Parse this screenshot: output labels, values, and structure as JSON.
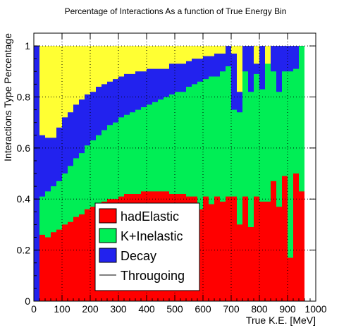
{
  "chart_data": {
    "type": "area",
    "stacked": true,
    "title": "Percentage of Interactions As a function of  True Energy Bin",
    "xlabel": "True K.E. [MeV]",
    "ylabel": "Interactions Type Percentage",
    "xlim": [
      0,
      1000
    ],
    "ylim": [
      0,
      1.05
    ],
    "xticks": [
      0,
      100,
      200,
      300,
      400,
      500,
      600,
      700,
      800,
      900,
      1000
    ],
    "yticks": [
      0,
      0.2,
      0.4,
      0.6,
      0.8,
      1
    ],
    "ytick_labels": [
      "0",
      "0.2",
      "0.4",
      "0.6",
      "0.8",
      "1"
    ],
    "grid": true,
    "legend_position": "bottom-center",
    "bin_width": 20,
    "bin_centers": [
      10,
      30,
      50,
      70,
      90,
      110,
      130,
      150,
      170,
      190,
      210,
      230,
      250,
      270,
      290,
      310,
      330,
      350,
      370,
      390,
      410,
      430,
      450,
      470,
      490,
      510,
      530,
      550,
      570,
      590,
      610,
      630,
      650,
      670,
      690,
      710,
      730,
      750,
      770,
      790,
      810,
      830,
      850,
      870,
      890,
      910,
      930,
      950,
      970,
      990
    ],
    "series": [
      {
        "name": "hadElastic",
        "color": "#ff0000",
        "cumulative": [
          0,
          0.26,
          0.25,
          0.27,
          0.28,
          0.3,
          0.31,
          0.33,
          0.34,
          0.36,
          0.37,
          0.38,
          0.39,
          0.4,
          0.4,
          0.41,
          0.42,
          0.42,
          0.42,
          0.43,
          0.43,
          0.43,
          0.43,
          0.43,
          0.42,
          0.42,
          0.42,
          0.41,
          0.41,
          0.36,
          0.41,
          0.38,
          0.41,
          0.39,
          0.41,
          0.41,
          0.3,
          0.41,
          0.29,
          0.41,
          0.39,
          0.39,
          0.47,
          0.37,
          0.49,
          0.17,
          0.5,
          0.43,
          0.0,
          0.0
        ]
      },
      {
        "name": "K+Inelastic",
        "color": "#00ee55",
        "cumulative": [
          0,
          0.41,
          0.43,
          0.45,
          0.47,
          0.5,
          0.53,
          0.56,
          0.58,
          0.61,
          0.63,
          0.65,
          0.67,
          0.69,
          0.7,
          0.72,
          0.73,
          0.74,
          0.75,
          0.76,
          0.77,
          0.78,
          0.79,
          0.8,
          0.81,
          0.82,
          0.82,
          0.84,
          0.85,
          0.86,
          0.87,
          0.88,
          0.88,
          0.9,
          0.92,
          0.75,
          0.74,
          0.9,
          0.82,
          0.89,
          0.83,
          0.93,
          0.9,
          0.82,
          0.9,
          0.9,
          0.91,
          1.0,
          0.0,
          0.0
        ]
      },
      {
        "name": "Decay",
        "color": "#2222ee",
        "cumulative": [
          1,
          0.65,
          0.64,
          0.64,
          0.68,
          0.72,
          0.74,
          0.77,
          0.79,
          0.81,
          0.82,
          0.84,
          0.85,
          0.86,
          0.87,
          0.88,
          0.89,
          0.89,
          0.9,
          0.9,
          0.91,
          0.91,
          0.91,
          0.91,
          0.93,
          0.93,
          0.93,
          0.94,
          0.95,
          0.95,
          0.96,
          0.96,
          0.97,
          0.97,
          1.0,
          0.97,
          0.82,
          1.0,
          1.0,
          0.93,
          1.0,
          0.9,
          1.0,
          1.0,
          1.0,
          1.0,
          1.0,
          1.0,
          0.0,
          0.0
        ]
      },
      {
        "name": "Througoing",
        "color": "#ffff33",
        "cumulative": [
          1,
          1,
          1,
          1,
          1,
          1,
          1,
          1,
          1,
          1,
          1,
          1,
          1,
          1,
          1,
          1,
          1,
          1,
          1,
          1,
          1,
          1,
          1,
          1,
          1,
          1,
          1,
          1,
          1,
          1,
          1,
          1,
          1,
          1,
          1,
          1,
          1,
          1,
          1,
          1,
          1,
          1,
          1,
          1,
          1,
          1,
          1,
          1,
          0,
          0
        ]
      }
    ]
  }
}
